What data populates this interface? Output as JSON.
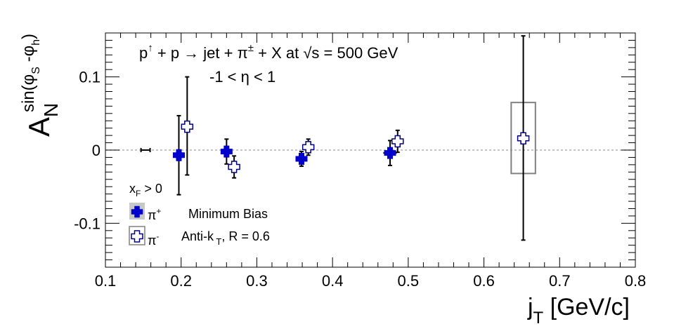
{
  "chart_data": {
    "type": "scatter",
    "title": "",
    "xlabel": "j_T [GeV/c]",
    "ylabel": "A_N^{sin(phi_S - phi_h)}",
    "xlim": [
      0.1,
      0.8
    ],
    "ylim": [
      -0.16,
      0.16
    ],
    "x_ticks": [
      "0.1",
      "0.2",
      "0.3",
      "0.4",
      "0.5",
      "0.6",
      "0.7",
      "0.8"
    ],
    "y_ticks": [
      "-0.1",
      "0",
      "0.1"
    ],
    "annotation_line1": "p↑ + p → jet + π± + X at √s = 500 GeV",
    "annotation_line2": "-1 < η < 1",
    "legend_header": "xF > 0",
    "legend_piplus": "π+",
    "legend_piminus": "π-",
    "legend_note1": "Minimum Bias",
    "legend_note2": "Anti-kT, R = 0.6",
    "grid": false,
    "zero_line": true,
    "colors": {
      "pi_plus": "#0000cc",
      "pi_minus": "#000080",
      "syst_box": "#808080"
    },
    "series": [
      {
        "name": "π+",
        "marker": "filled-cross",
        "points": [
          {
            "x": 0.197,
            "y": -0.007,
            "err_low": 0.054,
            "err_high": 0.054,
            "xerr": 0.003
          },
          {
            "x": 0.26,
            "y": -0.002,
            "err_low": 0.017,
            "err_high": 0.017,
            "xerr": 0.004
          },
          {
            "x": 0.359,
            "y": -0.012,
            "err_low": 0.01,
            "err_high": 0.01,
            "xerr": 0.004
          },
          {
            "x": 0.476,
            "y": -0.004,
            "err_low": 0.017,
            "err_high": 0.017,
            "xerr": 0.009
          }
        ]
      },
      {
        "name": "π-",
        "marker": "open-cross",
        "points": [
          {
            "x": 0.208,
            "y": 0.032,
            "err_low": 0.066,
            "err_high": 0.068,
            "xerr": 0.002
          },
          {
            "x": 0.27,
            "y": -0.023,
            "err_low": 0.015,
            "err_high": 0.015,
            "xerr": 0.004
          },
          {
            "x": 0.368,
            "y": 0.004,
            "err_low": 0.011,
            "err_high": 0.011,
            "xerr": 0.003
          },
          {
            "x": 0.486,
            "y": 0.012,
            "err_low": 0.015,
            "err_high": 0.015,
            "xerr": 0.004
          },
          {
            "x": 0.652,
            "y": 0.016,
            "err_low": 0.139,
            "err_high": 0.14,
            "xerr": 0.001,
            "syst_box": {
              "x_low": 0.636,
              "x_high": 0.668,
              "y_low": -0.032,
              "y_high": 0.065
            }
          }
        ]
      }
    ],
    "standalone_bar": {
      "x": 0.153,
      "y": 0.0,
      "xerr": 0.006
    }
  }
}
